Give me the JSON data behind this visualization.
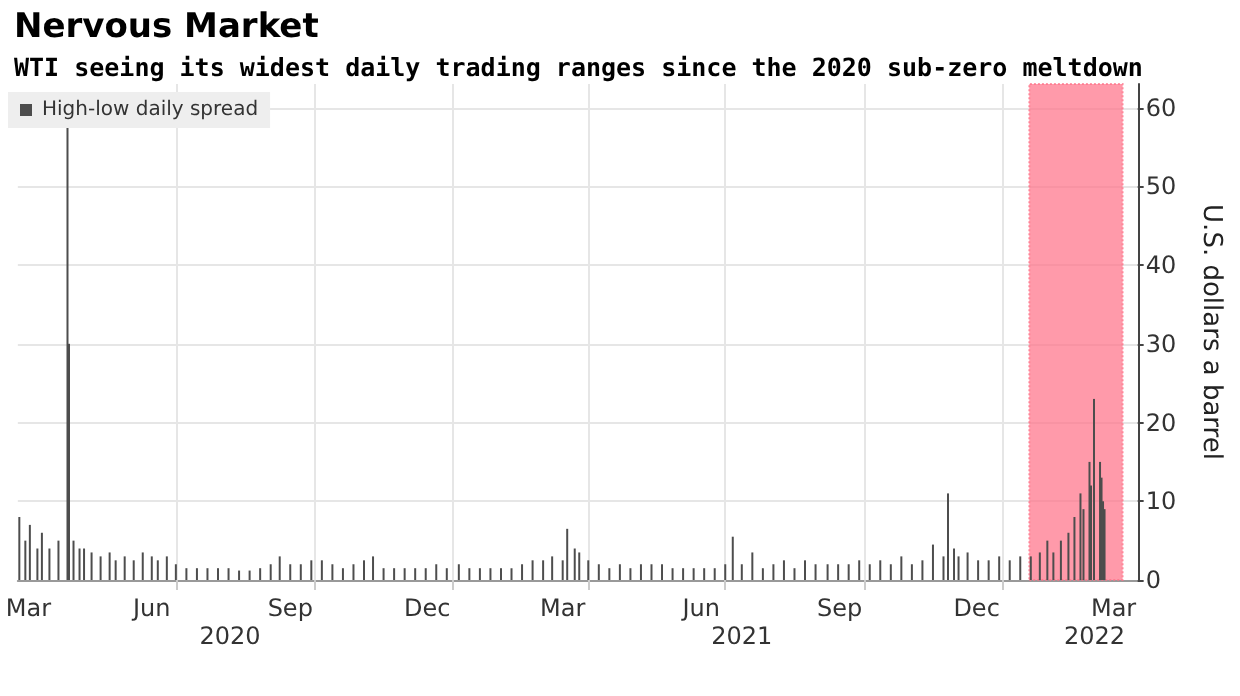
{
  "chart_data": {
    "type": "bar",
    "title": "Nervous Market",
    "subtitle": "WTI seeing its widest daily trading ranges since the 2020 sub-zero meltdown",
    "ylabel": "U.S. dollars a barrel",
    "x": [
      "2020-03-19",
      "2020-03-23",
      "2020-03-26",
      "2020-03-31",
      "2020-04-03",
      "2020-04-08",
      "2020-04-14",
      "2020-04-20",
      "2020-04-21",
      "2020-04-24",
      "2020-04-28",
      "2020-05-01",
      "2020-05-06",
      "2020-05-12",
      "2020-05-18",
      "2020-05-22",
      "2020-05-28",
      "2020-06-03",
      "2020-06-09",
      "2020-06-15",
      "2020-06-19",
      "2020-06-25",
      "2020-07-01",
      "2020-07-08",
      "2020-07-15",
      "2020-07-22",
      "2020-07-29",
      "2020-08-05",
      "2020-08-12",
      "2020-08-19",
      "2020-08-26",
      "2020-09-02",
      "2020-09-08",
      "2020-09-15",
      "2020-09-22",
      "2020-09-29",
      "2020-10-06",
      "2020-10-13",
      "2020-10-20",
      "2020-10-27",
      "2020-11-03",
      "2020-11-09",
      "2020-11-16",
      "2020-11-23",
      "2020-11-30",
      "2020-12-07",
      "2020-12-14",
      "2020-12-21",
      "2020-12-28",
      "2021-01-05",
      "2021-01-12",
      "2021-01-19",
      "2021-01-26",
      "2021-02-02",
      "2021-02-09",
      "2021-02-16",
      "2021-02-23",
      "2021-03-02",
      "2021-03-08",
      "2021-03-15",
      "2021-03-18",
      "2021-03-23",
      "2021-03-26",
      "2021-04-01",
      "2021-04-08",
      "2021-04-15",
      "2021-04-22",
      "2021-04-29",
      "2021-05-06",
      "2021-05-13",
      "2021-05-20",
      "2021-05-27",
      "2021-06-03",
      "2021-06-10",
      "2021-06-17",
      "2021-06-24",
      "2021-07-01",
      "2021-07-06",
      "2021-07-12",
      "2021-07-19",
      "2021-07-26",
      "2021-08-02",
      "2021-08-09",
      "2021-08-16",
      "2021-08-23",
      "2021-08-30",
      "2021-09-07",
      "2021-09-14",
      "2021-09-21",
      "2021-09-28",
      "2021-10-05",
      "2021-10-12",
      "2021-10-19",
      "2021-10-26",
      "2021-11-02",
      "2021-11-09",
      "2021-11-16",
      "2021-11-23",
      "2021-11-26",
      "2021-11-30",
      "2021-12-03",
      "2021-12-09",
      "2021-12-16",
      "2021-12-23",
      "2021-12-30",
      "2022-01-06",
      "2022-01-13",
      "2022-01-20",
      "2022-01-26",
      "2022-01-31",
      "2022-02-04",
      "2022-02-09",
      "2022-02-14",
      "2022-02-18",
      "2022-02-22",
      "2022-02-24",
      "2022-02-28",
      "2022-03-01",
      "2022-03-03",
      "2022-03-07",
      "2022-03-08",
      "2022-03-09",
      "2022-03-10"
    ],
    "series": [
      {
        "name": "High-low daily spread",
        "color": "#4d4d4d",
        "values": [
          8,
          5,
          7,
          4,
          6,
          4,
          5,
          58,
          30,
          5,
          4,
          4,
          3.5,
          3,
          3.5,
          2.5,
          3,
          2.5,
          3.5,
          3,
          2.5,
          3,
          2,
          1.5,
          1.5,
          1.5,
          1.5,
          1.5,
          1.2,
          1.2,
          1.5,
          2,
          3,
          2,
          2,
          2.5,
          2.5,
          2,
          1.5,
          2,
          2.5,
          3,
          1.5,
          1.5,
          1.5,
          1.5,
          1.5,
          2,
          1.5,
          2,
          1.5,
          1.5,
          1.5,
          1.5,
          1.5,
          2,
          2.5,
          2.5,
          3,
          2.5,
          6.5,
          4,
          3.5,
          2.5,
          2,
          1.5,
          2,
          1.5,
          2,
          2,
          2,
          1.5,
          1.5,
          1.5,
          1.5,
          1.5,
          2,
          5.5,
          2,
          3.5,
          1.5,
          2,
          2.5,
          1.5,
          2.5,
          2,
          2,
          2,
          2,
          2.5,
          2,
          2.5,
          2,
          3,
          2,
          2.5,
          4.5,
          3,
          11,
          4,
          3,
          3.5,
          2.5,
          2.5,
          3,
          2.5,
          3,
          3,
          3.5,
          5,
          3.5,
          5,
          6,
          8,
          11,
          9,
          15,
          12,
          23,
          15,
          13,
          10,
          9
        ]
      }
    ],
    "xlim": [
      "2020-03-18",
      "2022-04-01"
    ],
    "xticks": [
      {
        "value": "2020-03-25",
        "label": "Mar"
      },
      {
        "value": "2020-06-15",
        "label": "Jun"
      },
      {
        "value": "2020-09-15",
        "label": "Sep"
      },
      {
        "value": "2020-12-15",
        "label": "Dec"
      },
      {
        "value": "2021-03-15",
        "label": "Mar"
      },
      {
        "value": "2021-06-15",
        "label": "Jun"
      },
      {
        "value": "2021-09-15",
        "label": "Sep"
      },
      {
        "value": "2021-12-15",
        "label": "Dec"
      },
      {
        "value": "2022-03-16",
        "label": "Mar"
      },
      {
        "value": "2020-07-01",
        "label": null
      },
      {
        "value": "2020-10-01",
        "label": null
      },
      {
        "value": "2021-01-01",
        "label": null
      },
      {
        "value": "2021-04-01",
        "label": null
      },
      {
        "value": "2021-07-01",
        "label": null
      },
      {
        "value": "2021-10-01",
        "label": null
      },
      {
        "value": "2022-01-01",
        "label": null
      }
    ],
    "ylim": [
      0,
      63
    ],
    "yticks": [
      0,
      10,
      20,
      30,
      40,
      50,
      60
    ],
    "grid": true,
    "legend": "top left",
    "annotations": [
      "2020",
      "2021",
      "2022"
    ],
    "bands": [
      {
        "axis": "x",
        "from": "2022-01-19",
        "to": "2022-03-22",
        "color": "#ff6f86"
      }
    ]
  }
}
